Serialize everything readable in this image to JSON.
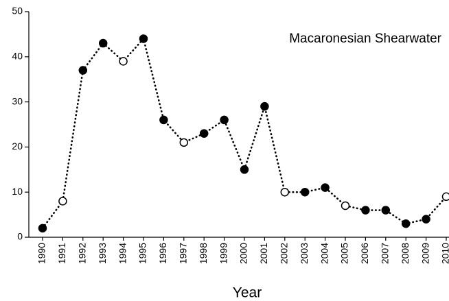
{
  "chart_data": {
    "type": "line",
    "title": "Macaronesian Shearwater",
    "x_label": "Year",
    "categories": [
      "1990",
      "1991",
      "1992",
      "1993",
      "1994",
      "1995",
      "1996",
      "1997",
      "1998",
      "1999",
      "2000",
      "2001",
      "2002",
      "2003",
      "2004",
      "2005",
      "2006",
      "2007",
      "2008",
      "2009",
      "2010"
    ],
    "values": [
      2,
      8,
      37,
      43,
      39,
      44,
      26,
      21,
      23,
      26,
      15,
      29,
      10,
      10,
      11,
      7,
      6,
      6,
      3,
      4,
      9
    ],
    "marker_colors": [
      "#000000",
      "#ffffff",
      "#000000",
      "#000000",
      "#ffffff",
      "#000000",
      "#000000",
      "#ffffff",
      "#000000",
      "#000000",
      "#000000",
      "#000000",
      "#ffffff",
      "#000000",
      "#000000",
      "#ffffff",
      "#000000",
      "#000000",
      "#000000",
      "#000000",
      "#ffffff"
    ],
    "color": "#000000",
    "ylim": [
      0,
      50
    ],
    "yticks": [
      0,
      10,
      20,
      30,
      40,
      50
    ],
    "grid": false
  }
}
